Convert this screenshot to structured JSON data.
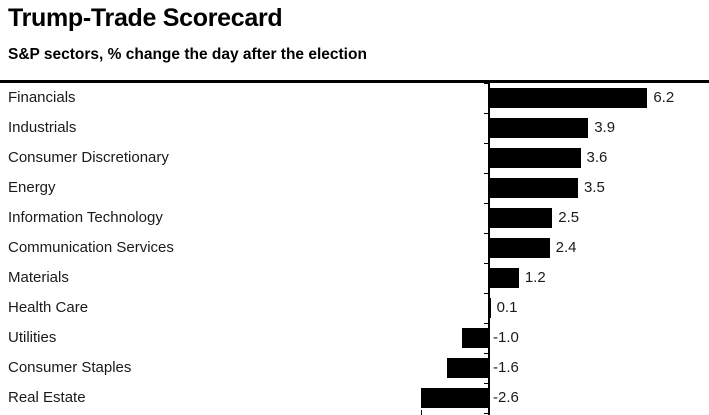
{
  "header": {
    "title": "Trump-Trade Scorecard",
    "subtitle": "S&P sectors, % change the day after the election"
  },
  "chart_data": {
    "type": "bar",
    "orientation": "horizontal",
    "title": "Trump-Trade Scorecard",
    "subtitle": "S&P sectors, % change the day after the election",
    "unit": "%",
    "categories": [
      "Financials",
      "Industrials",
      "Consumer Discretionary",
      "Energy",
      "Information Technology",
      "Communication Services",
      "Materials",
      "Health Care",
      "Utilities",
      "Consumer Staples",
      "Real Estate"
    ],
    "values": [
      6.2,
      3.9,
      3.6,
      3.5,
      2.5,
      2.4,
      1.2,
      0.1,
      -1.0,
      -1.6,
      -2.6
    ],
    "value_labels": [
      "6.2",
      "3.9",
      "3.6",
      "3.5",
      "2.5",
      "2.4",
      "1.2",
      "0.1",
      "-1.0",
      "-1.6",
      "-2.6"
    ],
    "baseline": 0,
    "xlim": [
      -2.6,
      6.2
    ],
    "grid": false,
    "legend": false,
    "value_label_position": "outside-end",
    "bar_color": "#000000"
  },
  "colors": {
    "background": "#ffffff",
    "bar": "#000000",
    "text": "#1a1a1a",
    "rule": "#000000"
  }
}
